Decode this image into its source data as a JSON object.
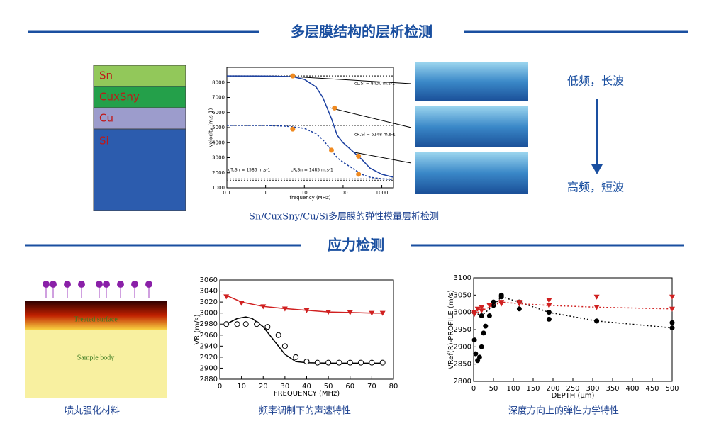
{
  "header": {
    "title": "多层膜结构的层析检测"
  },
  "layers": [
    "Sn",
    "CuxSny",
    "Cu",
    "Si"
  ],
  "side_labels": [
    "低频，长波",
    "高频，短波"
  ],
  "caption_top": "Sn/CuxSny/Cu/Si多层膜的弹性模量层析检测",
  "section2": {
    "title": "应力检测"
  },
  "peening": {
    "surface": "Treated surface",
    "body": "Sample body"
  },
  "captions_bottom": [
    "喷丸强化材料",
    "频率调制下的声速特性",
    "深度方向上的弹性力学特性"
  ],
  "chart_data": [
    {
      "type": "line",
      "xlabel": "frequency (MHz)",
      "ylabel": "velocity (m.s-1)",
      "xlog": true,
      "xlim": [
        0.1,
        2000
      ],
      "ylim": [
        1000,
        9000
      ],
      "xticks": [
        0.1,
        1,
        10,
        100,
        1000
      ],
      "yticks": [
        1000,
        2000,
        3000,
        4000,
        5000,
        6000,
        7000,
        8000
      ],
      "annotations": [
        "cL,Si = 8430 m.s-1",
        "cR,Si = 5148 m.s-1",
        "cT,Sn = 1586 m.s-1",
        "cR,Sn = 1485 m.s-1"
      ],
      "series": [
        {
          "color": "#555555",
          "dash": "2,2",
          "x": [
            0.1,
            2000
          ],
          "values": [
            8430,
            8430
          ]
        },
        {
          "color": "#555555",
          "dash": "2,2",
          "x": [
            0.1,
            2000
          ],
          "values": [
            5148,
            5148
          ]
        },
        {
          "color": "#555555",
          "dash": "2,2",
          "x": [
            0.1,
            2000
          ],
          "values": [
            1586,
            1586
          ]
        },
        {
          "color": "#555555",
          "dash": "2,2",
          "x": [
            0.1,
            2000
          ],
          "values": [
            1485,
            1485
          ]
        },
        {
          "color": "#1a3fa0",
          "x": [
            0.1,
            1,
            3,
            5,
            10,
            20,
            30,
            50,
            70,
            100,
            200,
            300,
            500,
            1000,
            2000
          ],
          "values": [
            8430,
            8420,
            8400,
            8380,
            8200,
            7700,
            7000,
            5600,
            4500,
            4000,
            3300,
            2900,
            2300,
            1900,
            1700
          ]
        },
        {
          "color": "#1a3fa0",
          "dash": "3,2",
          "x": [
            0.1,
            1,
            3,
            5,
            10,
            20,
            30,
            50,
            70,
            100,
            200,
            300,
            500,
            1000,
            2000
          ],
          "values": [
            5148,
            5140,
            5100,
            5050,
            4950,
            4600,
            4200,
            3500,
            3000,
            2700,
            2200,
            1900,
            1700,
            1600,
            1550
          ]
        },
        {
          "color": "#f08a20",
          "marker": "dot",
          "x": [
            5,
            60,
            250,
            5,
            50,
            250
          ],
          "values": [
            8430,
            6300,
            3100,
            4900,
            3500,
            1900
          ]
        }
      ]
    },
    {
      "type": "line",
      "xlabel": "FREQUENCY (MHz)",
      "ylabel": "VR (m/s)",
      "xlim": [
        0,
        80
      ],
      "ylim": [
        2880,
        3060
      ],
      "xticks": [
        0,
        10,
        20,
        30,
        40,
        50,
        60,
        70,
        80
      ],
      "yticks": [
        2880,
        2900,
        2920,
        2940,
        2960,
        2980,
        3000,
        3020,
        3040,
        3060
      ],
      "series": [
        {
          "color": "#d02020",
          "x": [
            3,
            10,
            20,
            30,
            40,
            50,
            60,
            70,
            75
          ],
          "values": [
            3032,
            3020,
            3012,
            3008,
            3005,
            3002,
            3001,
            3000,
            3000
          ]
        },
        {
          "color": "#d02020",
          "marker": "triangle",
          "x": [
            3,
            10,
            20,
            30,
            40,
            50,
            60,
            70,
            75
          ],
          "values": [
            3030,
            3018,
            3012,
            3008,
            3005,
            3002,
            3001,
            3000,
            3000
          ]
        },
        {
          "color": "#000000",
          "x": [
            3,
            8,
            12,
            15,
            20,
            25,
            30,
            35,
            40,
            50,
            60,
            75
          ],
          "values": [
            2980,
            2990,
            2993,
            2990,
            2975,
            2950,
            2925,
            2912,
            2910,
            2909,
            2909,
            2909
          ]
        },
        {
          "color": "#000000",
          "marker": "circle-open",
          "x": [
            3,
            8,
            12,
            17,
            22,
            27,
            30,
            35,
            40,
            45,
            50,
            55,
            60,
            65,
            70,
            75
          ],
          "values": [
            2980,
            2980,
            2980,
            2980,
            2975,
            2960,
            2940,
            2920,
            2912,
            2910,
            2910,
            2910,
            2910,
            2910,
            2910,
            2910
          ]
        }
      ]
    },
    {
      "type": "line",
      "xlabel": "DEPTH (μm)",
      "ylabel": "VRef(R)-PROFILE (m/s)",
      "xlim": [
        0,
        500
      ],
      "ylim": [
        2800,
        3100
      ],
      "xticks": [
        0,
        50,
        100,
        150,
        200,
        250,
        300,
        350,
        400,
        450,
        500
      ],
      "yticks": [
        2800,
        2850,
        2900,
        2950,
        3000,
        3050,
        3100
      ],
      "series": [
        {
          "color": "#000000",
          "marker": "dot",
          "x": [
            2,
            5,
            10,
            15,
            20,
            25,
            30,
            40,
            50,
            70,
            115,
            190,
            310,
            500
          ],
          "values": [
            2920,
            2880,
            2860,
            2870,
            2900,
            2940,
            2960,
            2990,
            3030,
            3050,
            3010,
            2980,
            2975,
            2970
          ]
        },
        {
          "color": "#000000",
          "dash": "2,3",
          "marker": "dot",
          "x": [
            2,
            20,
            50,
            70,
            115,
            190,
            310,
            500
          ],
          "values": [
            3000,
            2990,
            3020,
            3045,
            3030,
            3000,
            2975,
            2955
          ]
        },
        {
          "color": "#d02020",
          "marker": "triangle",
          "x": [
            2,
            10,
            20,
            40,
            70,
            115,
            190,
            310,
            500
          ],
          "values": [
            3000,
            3010,
            3015,
            3020,
            3025,
            3030,
            3035,
            3045,
            3045
          ]
        },
        {
          "color": "#d02020",
          "dash": "2,3",
          "marker": "triangle",
          "x": [
            2,
            20,
            70,
            115,
            190,
            310,
            500
          ],
          "values": [
            2995,
            3005,
            3030,
            3025,
            3020,
            3015,
            3010
          ]
        }
      ]
    }
  ]
}
